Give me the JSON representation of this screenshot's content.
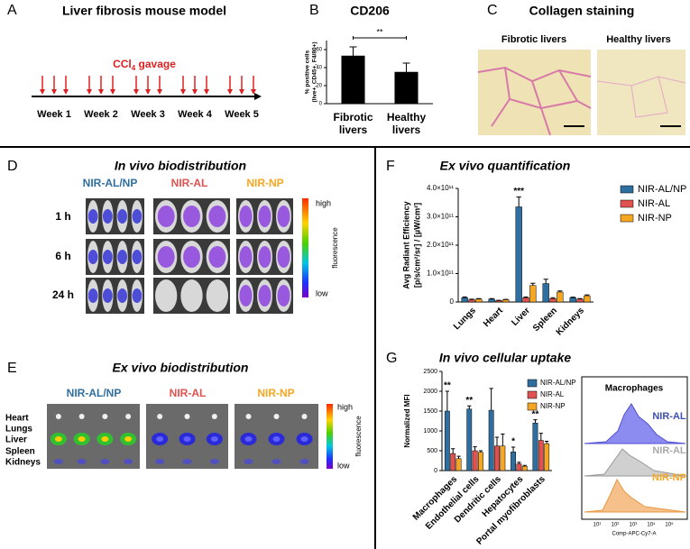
{
  "panels": {
    "A": {
      "label": "A",
      "title": "Liver fibrosis mouse model",
      "gavage": {
        "text": "CCl",
        "sub": "4",
        "rest": " gavage"
      },
      "weeks": [
        "Week 1",
        "Week 2",
        "Week 3",
        "Week 4",
        "Week 5"
      ]
    },
    "B": {
      "label": "B"
    },
    "C": {
      "label": "C",
      "title": "Collagen staining",
      "images": [
        "Fibrotic livers",
        "Healthy livers"
      ]
    },
    "D": {
      "label": "D",
      "title": "In vivo biodistribution",
      "groups": [
        "NIR-AL/NP",
        "NIR-AL",
        "NIR-NP"
      ],
      "times": [
        "1 h",
        "6 h",
        "24 h"
      ],
      "scale": {
        "high": "high",
        "low": "low",
        "name": "fluorescence"
      }
    },
    "E": {
      "label": "E",
      "title": "Ex vivo biodistribution",
      "groups": [
        "NIR-AL/NP",
        "NIR-AL",
        "NIR-NP"
      ],
      "organs": [
        "Heart",
        "Lungs",
        "Liver",
        "Spleen",
        "Kidneys"
      ],
      "scale": {
        "high": "high",
        "low": "low",
        "name": "fluorescence"
      }
    },
    "F": {
      "label": "F"
    },
    "G": {
      "label": "G",
      "histogram": {
        "title": "Macrophages",
        "labels": [
          "NIR-AL",
          "NIR-AL",
          "NIR-NP"
        ],
        "xticks": [
          "10¹",
          "10²",
          "10³",
          "10⁴",
          "10⁵"
        ],
        "xlabel": "Comp-APC-Cy7-A"
      }
    }
  },
  "chart_data": [
    {
      "type": "bar",
      "title": "CD206",
      "ylabel": [
        "% positive cells",
        "(live+, CD45+, F4/80+)"
      ],
      "categories": [
        "Fibrotic livers",
        "Healthy livers"
      ],
      "values": [
        53,
        35
      ],
      "errors": [
        10,
        10
      ],
      "color": "#000000",
      "ylim": [
        0,
        70
      ],
      "yticks": [
        0,
        20,
        40,
        60
      ],
      "significance": "**"
    },
    {
      "type": "bar",
      "title": "Ex vivo quantification",
      "ylabel": [
        "Avg Radiant Efficiency",
        "[p/s/cm²/sr] / [µW/cm²]"
      ],
      "categories": [
        "Lungs",
        "Heart",
        "Liver",
        "Spleen",
        "Kidneys"
      ],
      "series": [
        {
          "name": "NIR-AL/NP",
          "color": "#2f6f9f",
          "values": [
            15000000000.0,
            10000000000.0,
            335000000000.0,
            65000000000.0,
            15000000000.0
          ],
          "errors": [
            3000000000.0,
            2000000000.0,
            35000000000.0,
            15000000000.0,
            2000000000.0
          ]
        },
        {
          "name": "NIR-AL",
          "color": "#e0524f",
          "values": [
            8000000000.0,
            5000000000.0,
            15000000000.0,
            12000000000.0,
            10000000000.0
          ],
          "errors": [
            2000000000.0,
            1000000000.0,
            3000000000.0,
            3000000000.0,
            2000000000.0
          ]
        },
        {
          "name": "NIR-NP",
          "color": "#f5a623",
          "values": [
            10000000000.0,
            8000000000.0,
            58000000000.0,
            35000000000.0,
            22000000000.0
          ],
          "errors": [
            2000000000.0,
            1000000000.0,
            8000000000.0,
            4000000000.0,
            3000000000.0
          ]
        }
      ],
      "ylim": [
        0,
        400000000000.0
      ],
      "yticks": [
        0,
        {
          "value": 100000000000.0,
          "label": "1.0×10¹¹"
        },
        {
          "value": 200000000000.0,
          "label": "2.0×10¹¹"
        },
        {
          "value": 300000000000.0,
          "label": "3.0×10¹¹"
        },
        {
          "value": 400000000000.0,
          "label": "4.0×10¹¹"
        }
      ],
      "annotations": [
        null,
        null,
        "***",
        null,
        null
      ]
    },
    {
      "type": "bar",
      "title": "In vivo cellular uptake",
      "ylabel": [
        "Normalized MFI"
      ],
      "categories": [
        "Macrophages",
        "Endothelial cells",
        "Dendritic cells",
        "Hepatocytes",
        "Portal myofibroblasts"
      ],
      "series": [
        {
          "name": "NIR-AL/NP",
          "color": "#2f6f9f",
          "values": [
            1500,
            1550,
            1520,
            470,
            1200
          ],
          "errors": [
            500,
            80,
            550,
            120,
            80
          ]
        },
        {
          "name": "NIR-AL",
          "color": "#e0524f",
          "values": [
            430,
            500,
            620,
            170,
            760
          ],
          "errors": [
            120,
            100,
            220,
            40,
            180
          ]
        },
        {
          "name": "NIR-NP",
          "color": "#f5a623",
          "values": [
            300,
            460,
            620,
            110,
            680
          ],
          "errors": [
            60,
            40,
            300,
            20,
            60
          ]
        }
      ],
      "ylim": [
        0,
        2500
      ],
      "yticks": [
        0,
        500,
        1000,
        1500,
        2000,
        2500
      ],
      "annotations": [
        "**",
        "**",
        null,
        "*",
        "**"
      ]
    }
  ]
}
